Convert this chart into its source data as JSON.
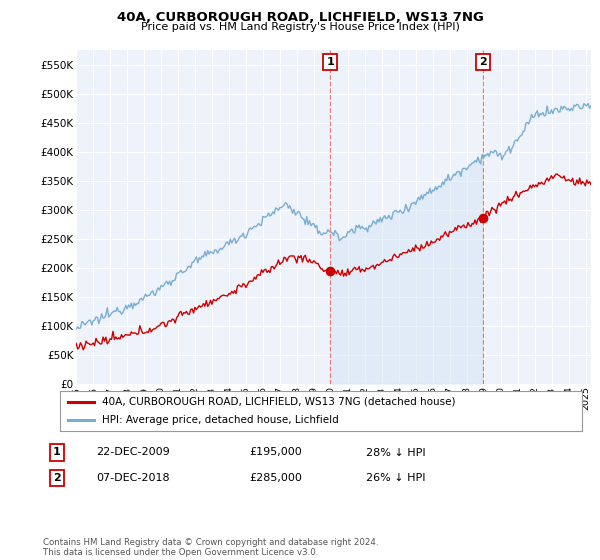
{
  "title": "40A, CURBOROUGH ROAD, LICHFIELD, WS13 7NG",
  "subtitle": "Price paid vs. HM Land Registry's House Price Index (HPI)",
  "legend_label_red": "40A, CURBOROUGH ROAD, LICHFIELD, WS13 7NG (detached house)",
  "legend_label_blue": "HPI: Average price, detached house, Lichfield",
  "annotation1_label": "1",
  "annotation1_date": "22-DEC-2009",
  "annotation1_price": "£195,000",
  "annotation1_pct": "28% ↓ HPI",
  "annotation2_label": "2",
  "annotation2_date": "07-DEC-2018",
  "annotation2_price": "£285,000",
  "annotation2_pct": "26% ↓ HPI",
  "footer": "Contains HM Land Registry data © Crown copyright and database right 2024.\nThis data is licensed under the Open Government Licence v3.0.",
  "ylim": [
    0,
    575000
  ],
  "yticks": [
    0,
    50000,
    100000,
    150000,
    200000,
    250000,
    300000,
    350000,
    400000,
    450000,
    500000,
    550000
  ],
  "ytick_labels": [
    "£0",
    "£50K",
    "£100K",
    "£150K",
    "£200K",
    "£250K",
    "£300K",
    "£350K",
    "£400K",
    "£450K",
    "£500K",
    "£550K"
  ],
  "background_color": "#ffffff",
  "plot_bg_color": "#eef2fa",
  "grid_color": "#ffffff",
  "red_color": "#cc0000",
  "blue_color": "#7aadd4",
  "blue_fill_color": "#d5e5f5",
  "marker1_x": 2009.95,
  "marker1_y": 195000,
  "marker2_x": 2018.92,
  "marker2_y": 285000,
  "vline1_x": 2009.95,
  "vline2_x": 2018.92,
  "xmin": 1995.0,
  "xmax": 2025.3
}
